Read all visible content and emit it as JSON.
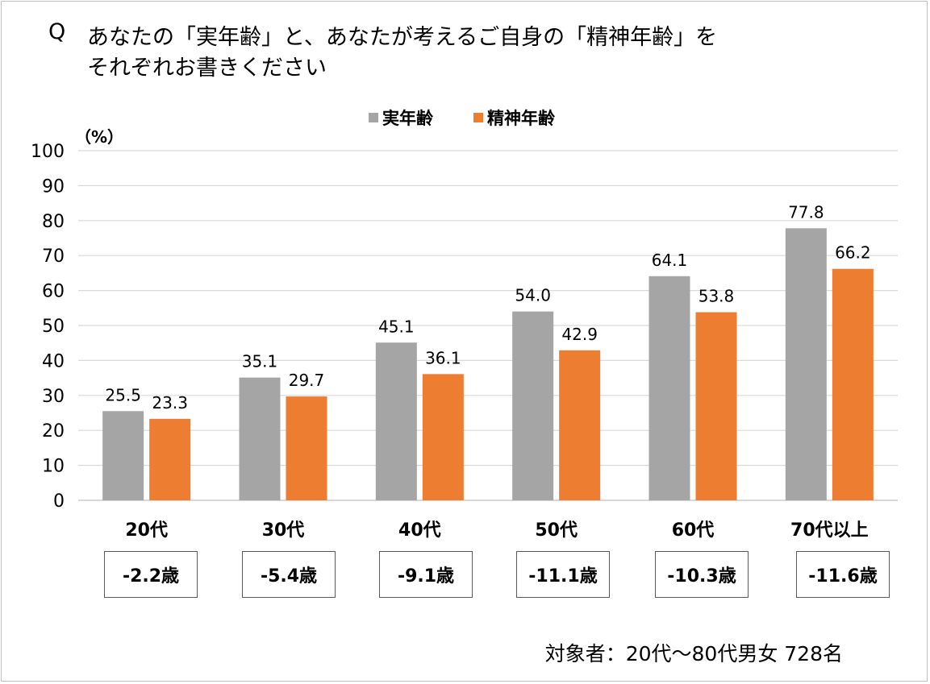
{
  "title": {
    "q_mark": "Q",
    "line1": "あなたの「実年齢」と、あなたが考えるご自身の「精神年齢」を",
    "line2": "それぞれお書きください"
  },
  "chart_data": {
    "type": "bar",
    "ylabel": "（%）",
    "ylim": [
      0,
      100
    ],
    "yticks": [
      0,
      10,
      20,
      30,
      40,
      50,
      60,
      70,
      80,
      90,
      100
    ],
    "grid": true,
    "legend_position": "top-center",
    "categories": [
      "20代",
      "30代",
      "40代",
      "50代",
      "60代",
      "70代以上"
    ],
    "series": [
      {
        "name": "実年齢",
        "color": "#a5a5a5",
        "values": [
          25.5,
          35.1,
          45.1,
          54.0,
          64.1,
          77.8
        ],
        "labels": [
          "25.5",
          "35.1",
          "45.1",
          "54.0",
          "64.1",
          "77.8"
        ]
      },
      {
        "name": "精神年齢",
        "color": "#ed7d31",
        "values": [
          23.3,
          29.7,
          36.1,
          42.9,
          53.8,
          66.2
        ],
        "labels": [
          "23.3",
          "29.7",
          "36.1",
          "42.9",
          "53.8",
          "66.2"
        ]
      }
    ],
    "differences": [
      "-2.2歳",
      "-5.4歳",
      "-9.1歳",
      "-11.1歳",
      "-10.3歳",
      "-11.6歳"
    ]
  },
  "footnote": "対象者：20代～80代男女 728名"
}
